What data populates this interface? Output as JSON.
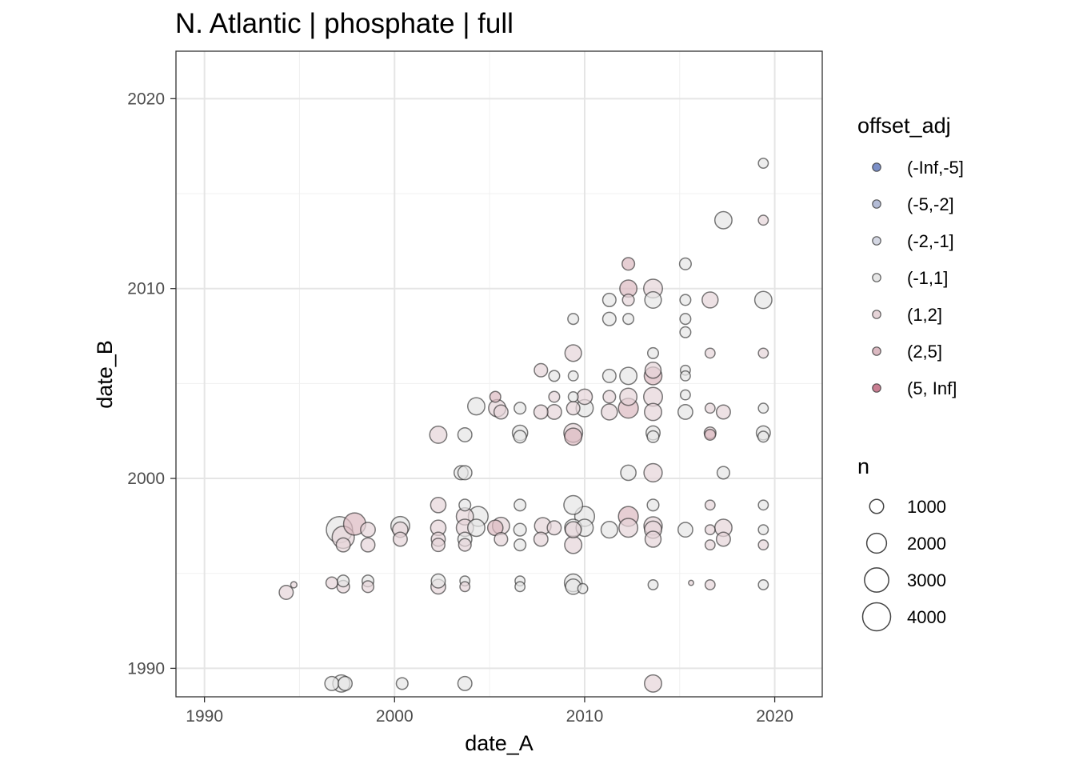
{
  "chart_data": {
    "type": "scatter",
    "title": "N. Atlantic | phosphate | full",
    "xlabel": "date_A",
    "ylabel": "date_B",
    "xlim": [
      1988.5,
      2022.5
    ],
    "ylim": [
      1988.5,
      2022.5
    ],
    "x_ticks": [
      "1990",
      "2000",
      "2010",
      "2020"
    ],
    "y_ticks": [
      "1990",
      "2000",
      "2010",
      "2020"
    ],
    "grid": true,
    "legend_placement": "right",
    "color_legend": {
      "title": "offset_adj",
      "entries": [
        {
          "label": "(-Inf,-5]",
          "color": "#7b8fc7"
        },
        {
          "label": "(-5,-2]",
          "color": "#b4bcd6"
        },
        {
          "label": "(-2,-1]",
          "color": "#d4d7e3"
        },
        {
          "label": "(-1,1]",
          "color": "#e6e6e6"
        },
        {
          "label": "(1,2]",
          "color": "#e6d4d8"
        },
        {
          "label": "(2,5]",
          "color": "#dbb9c1"
        },
        {
          "label": "(5, Inf]",
          "color": "#c97e92"
        }
      ]
    },
    "size_legend": {
      "title": "n",
      "entries": [
        {
          "label": "1000",
          "value": 1000
        },
        {
          "label": "2000",
          "value": 2000
        },
        {
          "label": "3000",
          "value": 3000
        },
        {
          "label": "4000",
          "value": 4000
        }
      ]
    },
    "points": [
      {
        "x": 1994.3,
        "y": 1994.0,
        "n": 1000,
        "c": "(1,2]"
      },
      {
        "x": 1994.7,
        "y": 1994.4,
        "n": 200,
        "c": "(1,2]"
      },
      {
        "x": 1996.7,
        "y": 1994.5,
        "n": 700,
        "c": "(1,2]"
      },
      {
        "x": 1996.7,
        "y": 1989.2,
        "n": 1000,
        "c": "(-1,1]"
      },
      {
        "x": 1997.2,
        "y": 1989.2,
        "n": 1500,
        "c": "(-1,1]"
      },
      {
        "x": 1997.4,
        "y": 1989.2,
        "n": 1000,
        "c": "(-1,1]"
      },
      {
        "x": 1997.3,
        "y": 1994.6,
        "n": 700,
        "c": "(-1,1]"
      },
      {
        "x": 1997.3,
        "y": 1994.3,
        "n": 800,
        "c": "(1,2]"
      },
      {
        "x": 1997.1,
        "y": 1997.3,
        "n": 3500,
        "c": "(-1,1]"
      },
      {
        "x": 1997.3,
        "y": 1996.9,
        "n": 2500,
        "c": "(1,2]"
      },
      {
        "x": 1997.3,
        "y": 1996.5,
        "n": 1000,
        "c": "(1,2]"
      },
      {
        "x": 1997.9,
        "y": 1997.6,
        "n": 2500,
        "c": "(2,5]"
      },
      {
        "x": 1998.6,
        "y": 1997.3,
        "n": 1100,
        "c": "(1,2]"
      },
      {
        "x": 1998.6,
        "y": 1996.5,
        "n": 1000,
        "c": "(1,2]"
      },
      {
        "x": 1998.6,
        "y": 1994.6,
        "n": 700,
        "c": "(-1,1]"
      },
      {
        "x": 1998.6,
        "y": 1994.3,
        "n": 700,
        "c": "(1,2]"
      },
      {
        "x": 2000.3,
        "y": 1997.5,
        "n": 1800,
        "c": "(-1,1]"
      },
      {
        "x": 2000.3,
        "y": 1997.3,
        "n": 1200,
        "c": "(1,2]"
      },
      {
        "x": 2000.3,
        "y": 1996.8,
        "n": 1000,
        "c": "(1,2]"
      },
      {
        "x": 2000.4,
        "y": 1989.2,
        "n": 700,
        "c": "(-1,1]"
      },
      {
        "x": 2002.3,
        "y": 2002.3,
        "n": 1500,
        "c": "(1,2]"
      },
      {
        "x": 2002.3,
        "y": 1998.6,
        "n": 1200,
        "c": "(1,2]"
      },
      {
        "x": 2002.3,
        "y": 1997.4,
        "n": 1200,
        "c": "(1,2]"
      },
      {
        "x": 2002.3,
        "y": 1996.8,
        "n": 1000,
        "c": "(1,2]"
      },
      {
        "x": 2002.3,
        "y": 1996.5,
        "n": 900,
        "c": "(1,2]"
      },
      {
        "x": 2002.3,
        "y": 1994.6,
        "n": 1000,
        "c": "(-1,1]"
      },
      {
        "x": 2002.3,
        "y": 1994.3,
        "n": 1100,
        "c": "(1,2]"
      },
      {
        "x": 2003.7,
        "y": 1989.2,
        "n": 1000,
        "c": "(-1,1]"
      },
      {
        "x": 2003.7,
        "y": 2002.3,
        "n": 1000,
        "c": "(-1,1]"
      },
      {
        "x": 2003.5,
        "y": 2000.3,
        "n": 1000,
        "c": "(-1,1]"
      },
      {
        "x": 2003.7,
        "y": 2000.3,
        "n": 1000,
        "c": "(-1,1]"
      },
      {
        "x": 2003.7,
        "y": 1998.6,
        "n": 700,
        "c": "(-1,1]"
      },
      {
        "x": 2003.7,
        "y": 1998.0,
        "n": 1500,
        "c": "(1,2]"
      },
      {
        "x": 2003.7,
        "y": 1997.4,
        "n": 1500,
        "c": "(1,2]"
      },
      {
        "x": 2003.7,
        "y": 1996.8,
        "n": 1000,
        "c": "(-1,1]"
      },
      {
        "x": 2003.7,
        "y": 1996.5,
        "n": 800,
        "c": "(1,2]"
      },
      {
        "x": 2003.7,
        "y": 1994.6,
        "n": 500,
        "c": "(-1,1]"
      },
      {
        "x": 2003.7,
        "y": 1994.3,
        "n": 500,
        "c": "(1,2]"
      },
      {
        "x": 2004.3,
        "y": 2003.8,
        "n": 1500,
        "c": "(-1,1]"
      },
      {
        "x": 2004.4,
        "y": 1998.0,
        "n": 2000,
        "c": "(-1,1]"
      },
      {
        "x": 2004.3,
        "y": 1997.4,
        "n": 1500,
        "c": "(-1,1]"
      },
      {
        "x": 2005.3,
        "y": 2004.3,
        "n": 600,
        "c": "(2,5]"
      },
      {
        "x": 2005.4,
        "y": 2003.7,
        "n": 1500,
        "c": "(1,2]"
      },
      {
        "x": 2005.6,
        "y": 2003.5,
        "n": 1000,
        "c": "(1,2]"
      },
      {
        "x": 2005.3,
        "y": 1997.4,
        "n": 1200,
        "c": "(2,5]"
      },
      {
        "x": 2005.6,
        "y": 1997.5,
        "n": 1500,
        "c": "(1,2]"
      },
      {
        "x": 2005.6,
        "y": 1996.8,
        "n": 900,
        "c": "(1,2]"
      },
      {
        "x": 2006.6,
        "y": 2003.7,
        "n": 700,
        "c": "(-1,1]"
      },
      {
        "x": 2006.6,
        "y": 2002.4,
        "n": 1200,
        "c": "(-1,1]"
      },
      {
        "x": 2006.6,
        "y": 2002.2,
        "n": 800,
        "c": "(-1,1]"
      },
      {
        "x": 2006.6,
        "y": 1998.6,
        "n": 700,
        "c": "(-1,1]"
      },
      {
        "x": 2006.6,
        "y": 1997.3,
        "n": 800,
        "c": "(-1,1]"
      },
      {
        "x": 2006.6,
        "y": 1996.5,
        "n": 700,
        "c": "(-1,1]"
      },
      {
        "x": 2006.6,
        "y": 1994.6,
        "n": 500,
        "c": "(-1,1]"
      },
      {
        "x": 2006.6,
        "y": 1994.3,
        "n": 500,
        "c": "(-1,1]"
      },
      {
        "x": 2007.7,
        "y": 2005.7,
        "n": 900,
        "c": "(1,2]"
      },
      {
        "x": 2007.7,
        "y": 2003.5,
        "n": 1000,
        "c": "(1,2]"
      },
      {
        "x": 2007.8,
        "y": 1997.5,
        "n": 1400,
        "c": "(1,2]"
      },
      {
        "x": 2007.7,
        "y": 1996.8,
        "n": 1000,
        "c": "(1,2]"
      },
      {
        "x": 2008.4,
        "y": 2005.4,
        "n": 600,
        "c": "(-1,1]"
      },
      {
        "x": 2008.4,
        "y": 2004.3,
        "n": 600,
        "c": "(1,2]"
      },
      {
        "x": 2008.4,
        "y": 2003.5,
        "n": 1100,
        "c": "(1,2]"
      },
      {
        "x": 2008.4,
        "y": 1997.4,
        "n": 1000,
        "c": "(1,2]"
      },
      {
        "x": 2009.4,
        "y": 2008.4,
        "n": 600,
        "c": "(-1,1]"
      },
      {
        "x": 2009.4,
        "y": 2006.6,
        "n": 1400,
        "c": "(1,2]"
      },
      {
        "x": 2009.4,
        "y": 2005.4,
        "n": 500,
        "c": "(-1,1]"
      },
      {
        "x": 2009.4,
        "y": 2004.3,
        "n": 500,
        "c": "(-1,1]"
      },
      {
        "x": 2009.4,
        "y": 2003.7,
        "n": 900,
        "c": "(1,2]"
      },
      {
        "x": 2009.4,
        "y": 2002.4,
        "n": 1800,
        "c": "(1,2]"
      },
      {
        "x": 2009.4,
        "y": 2002.2,
        "n": 1500,
        "c": "(2,5]"
      },
      {
        "x": 2009.4,
        "y": 1998.6,
        "n": 1800,
        "c": "(-1,1]"
      },
      {
        "x": 2009.4,
        "y": 1997.4,
        "n": 1500,
        "c": "(-1,1]"
      },
      {
        "x": 2009.4,
        "y": 1997.3,
        "n": 1300,
        "c": "(1,2]"
      },
      {
        "x": 2009.4,
        "y": 1996.5,
        "n": 1500,
        "c": "(1,2]"
      },
      {
        "x": 2009.4,
        "y": 1994.5,
        "n": 1600,
        "c": "(-1,1]"
      },
      {
        "x": 2009.4,
        "y": 1994.3,
        "n": 1200,
        "c": "(-1,1]"
      },
      {
        "x": 2009.9,
        "y": 1994.2,
        "n": 500,
        "c": "(-1,1]"
      },
      {
        "x": 2010.0,
        "y": 2004.3,
        "n": 1200,
        "c": "(1,2]"
      },
      {
        "x": 2010.0,
        "y": 2003.7,
        "n": 1500,
        "c": "(-1,1]"
      },
      {
        "x": 2010.0,
        "y": 1998.0,
        "n": 2000,
        "c": "(-1,1]"
      },
      {
        "x": 2010.0,
        "y": 1997.4,
        "n": 1500,
        "c": "(-1,1]"
      },
      {
        "x": 2011.3,
        "y": 2009.4,
        "n": 900,
        "c": "(-1,1]"
      },
      {
        "x": 2011.3,
        "y": 2008.4,
        "n": 900,
        "c": "(-1,1]"
      },
      {
        "x": 2011.3,
        "y": 2005.4,
        "n": 900,
        "c": "(-1,1]"
      },
      {
        "x": 2011.3,
        "y": 2004.3,
        "n": 800,
        "c": "(1,2]"
      },
      {
        "x": 2011.3,
        "y": 2003.5,
        "n": 1300,
        "c": "(1,2]"
      },
      {
        "x": 2011.3,
        "y": 1997.3,
        "n": 1400,
        "c": "(-1,1]"
      },
      {
        "x": 2012.3,
        "y": 2011.3,
        "n": 800,
        "c": "(2,5]"
      },
      {
        "x": 2012.3,
        "y": 2010.0,
        "n": 1500,
        "c": "(2,5]"
      },
      {
        "x": 2012.3,
        "y": 2009.4,
        "n": 700,
        "c": "(1,2]"
      },
      {
        "x": 2012.3,
        "y": 2008.4,
        "n": 600,
        "c": "(-1,1]"
      },
      {
        "x": 2012.3,
        "y": 2005.4,
        "n": 1500,
        "c": "(-1,1]"
      },
      {
        "x": 2012.3,
        "y": 2004.3,
        "n": 1500,
        "c": "(1,2]"
      },
      {
        "x": 2012.3,
        "y": 2003.7,
        "n": 2000,
        "c": "(2,5]"
      },
      {
        "x": 2012.3,
        "y": 2000.3,
        "n": 1200,
        "c": "(-1,1]"
      },
      {
        "x": 2012.3,
        "y": 1998.0,
        "n": 2000,
        "c": "(2,5]"
      },
      {
        "x": 2012.3,
        "y": 1997.4,
        "n": 1800,
        "c": "(1,2]"
      },
      {
        "x": 2013.6,
        "y": 2010.0,
        "n": 1800,
        "c": "(1,2]"
      },
      {
        "x": 2013.6,
        "y": 2009.4,
        "n": 1400,
        "c": "(-1,1]"
      },
      {
        "x": 2013.6,
        "y": 2006.6,
        "n": 600,
        "c": "(-1,1]"
      },
      {
        "x": 2013.6,
        "y": 2005.7,
        "n": 1300,
        "c": "(1,2]"
      },
      {
        "x": 2013.6,
        "y": 2005.4,
        "n": 1600,
        "c": "(2,5]"
      },
      {
        "x": 2013.6,
        "y": 2004.3,
        "n": 1800,
        "c": "(1,2]"
      },
      {
        "x": 2013.6,
        "y": 2003.5,
        "n": 1500,
        "c": "(1,2]"
      },
      {
        "x": 2013.6,
        "y": 2002.4,
        "n": 1000,
        "c": "(-1,1]"
      },
      {
        "x": 2013.6,
        "y": 2002.2,
        "n": 700,
        "c": "(-1,1]"
      },
      {
        "x": 2013.6,
        "y": 2000.3,
        "n": 1700,
        "c": "(1,2]"
      },
      {
        "x": 2013.6,
        "y": 1998.6,
        "n": 700,
        "c": "(-1,1]"
      },
      {
        "x": 2013.6,
        "y": 1997.5,
        "n": 1700,
        "c": "(1,2]"
      },
      {
        "x": 2013.6,
        "y": 1997.3,
        "n": 1500,
        "c": "(1,2]"
      },
      {
        "x": 2013.6,
        "y": 1996.8,
        "n": 1300,
        "c": "(1,2]"
      },
      {
        "x": 2013.6,
        "y": 1994.4,
        "n": 500,
        "c": "(-1,1]"
      },
      {
        "x": 2013.6,
        "y": 1989.2,
        "n": 1500,
        "c": "(1,2]"
      },
      {
        "x": 2015.3,
        "y": 2011.3,
        "n": 700,
        "c": "(-1,1]"
      },
      {
        "x": 2015.3,
        "y": 2009.4,
        "n": 600,
        "c": "(-1,1]"
      },
      {
        "x": 2015.3,
        "y": 2008.4,
        "n": 600,
        "c": "(-1,1]"
      },
      {
        "x": 2015.3,
        "y": 2007.7,
        "n": 600,
        "c": "(-1,1]"
      },
      {
        "x": 2015.3,
        "y": 2005.7,
        "n": 500,
        "c": "(-1,1]"
      },
      {
        "x": 2015.3,
        "y": 2005.4,
        "n": 500,
        "c": "(-1,1]"
      },
      {
        "x": 2015.3,
        "y": 2004.4,
        "n": 500,
        "c": "(-1,1]"
      },
      {
        "x": 2015.3,
        "y": 2003.5,
        "n": 1100,
        "c": "(-1,1]"
      },
      {
        "x": 2015.3,
        "y": 1997.3,
        "n": 1100,
        "c": "(-1,1]"
      },
      {
        "x": 2015.6,
        "y": 1994.5,
        "n": 50,
        "c": "(1,2]"
      },
      {
        "x": 2016.6,
        "y": 2009.4,
        "n": 1300,
        "c": "(1,2]"
      },
      {
        "x": 2016.6,
        "y": 2006.6,
        "n": 500,
        "c": "(1,2]"
      },
      {
        "x": 2016.6,
        "y": 2003.7,
        "n": 500,
        "c": "(1,2]"
      },
      {
        "x": 2016.6,
        "y": 2002.4,
        "n": 700,
        "c": "(1,2]"
      },
      {
        "x": 2016.6,
        "y": 2002.3,
        "n": 600,
        "c": "(2,5]"
      },
      {
        "x": 2016.6,
        "y": 1998.6,
        "n": 500,
        "c": "(1,2]"
      },
      {
        "x": 2016.6,
        "y": 1997.3,
        "n": 500,
        "c": "(1,2]"
      },
      {
        "x": 2016.6,
        "y": 1996.5,
        "n": 500,
        "c": "(1,2]"
      },
      {
        "x": 2016.6,
        "y": 1994.4,
        "n": 500,
        "c": "(1,2]"
      },
      {
        "x": 2017.3,
        "y": 2013.6,
        "n": 1500,
        "c": "(-1,1]"
      },
      {
        "x": 2017.3,
        "y": 2003.5,
        "n": 1000,
        "c": "(1,2]"
      },
      {
        "x": 2017.3,
        "y": 2000.3,
        "n": 800,
        "c": "(-1,1]"
      },
      {
        "x": 2017.3,
        "y": 1997.4,
        "n": 1500,
        "c": "(1,2]"
      },
      {
        "x": 2017.3,
        "y": 1996.8,
        "n": 1000,
        "c": "(1,2]"
      },
      {
        "x": 2019.4,
        "y": 2016.6,
        "n": 500,
        "c": "(-1,1]"
      },
      {
        "x": 2019.4,
        "y": 2013.6,
        "n": 500,
        "c": "(1,2]"
      },
      {
        "x": 2019.4,
        "y": 2009.4,
        "n": 1500,
        "c": "(-1,1]"
      },
      {
        "x": 2019.4,
        "y": 2006.6,
        "n": 500,
        "c": "(1,2]"
      },
      {
        "x": 2019.4,
        "y": 2003.7,
        "n": 500,
        "c": "(-1,1]"
      },
      {
        "x": 2019.4,
        "y": 2002.4,
        "n": 1000,
        "c": "(-1,1]"
      },
      {
        "x": 2019.4,
        "y": 2002.2,
        "n": 600,
        "c": "(-1,1]"
      },
      {
        "x": 2019.4,
        "y": 1998.6,
        "n": 500,
        "c": "(-1,1]"
      },
      {
        "x": 2019.4,
        "y": 1997.3,
        "n": 500,
        "c": "(-1,1]"
      },
      {
        "x": 2019.4,
        "y": 1996.5,
        "n": 500,
        "c": "(1,2]"
      },
      {
        "x": 2019.4,
        "y": 1994.4,
        "n": 500,
        "c": "(-1,1]"
      }
    ]
  }
}
